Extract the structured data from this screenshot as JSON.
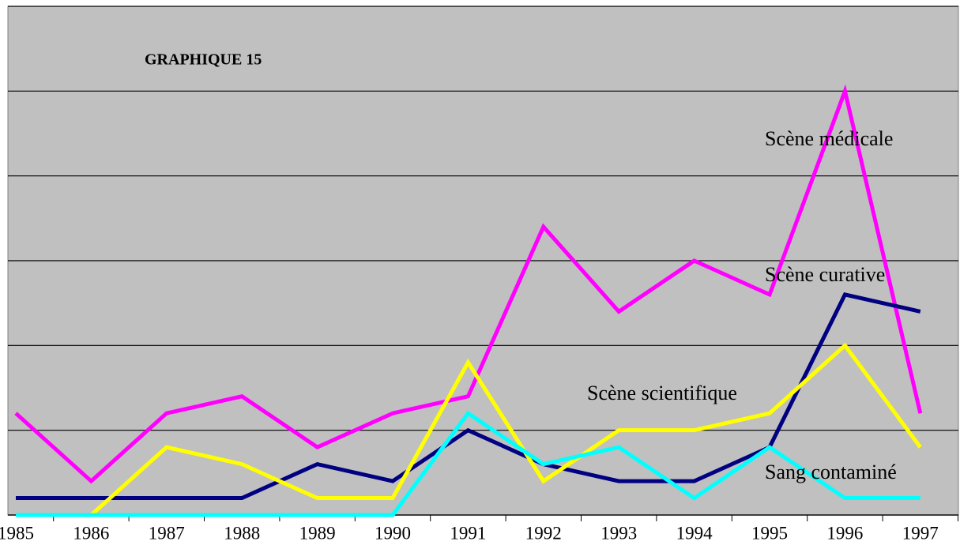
{
  "chart_data": {
    "type": "line",
    "title": "GRAPHIQUE 15",
    "categories": [
      "1985",
      "1986",
      "1987",
      "1988",
      "1989",
      "1990",
      "1991",
      "1992",
      "1993",
      "1994",
      "1995",
      "1996",
      "1997"
    ],
    "series": [
      {
        "name": "Scène médicale",
        "color": "#ff00ff",
        "values": [
          12,
          4,
          12,
          14,
          8,
          12,
          14,
          34,
          24,
          30,
          26,
          50,
          12
        ]
      },
      {
        "name": "Scène curative",
        "color": "#000080",
        "values": [
          2,
          2,
          2,
          2,
          6,
          4,
          10,
          6,
          4,
          4,
          8,
          26,
          24
        ]
      },
      {
        "name": "Scène scientifique",
        "color": "#ffff00",
        "values": [
          0,
          0,
          8,
          6,
          2,
          2,
          18,
          4,
          10,
          10,
          12,
          20,
          8
        ]
      },
      {
        "name": "Sang contaminé",
        "color": "#00ffff",
        "values": [
          0,
          0,
          0,
          0,
          0,
          0,
          12,
          6,
          8,
          2,
          8,
          2,
          2
        ]
      }
    ],
    "ylim": [
      0,
      60
    ],
    "yticks": [
      0,
      10,
      20,
      30,
      40,
      50,
      60
    ],
    "grid": true
  }
}
